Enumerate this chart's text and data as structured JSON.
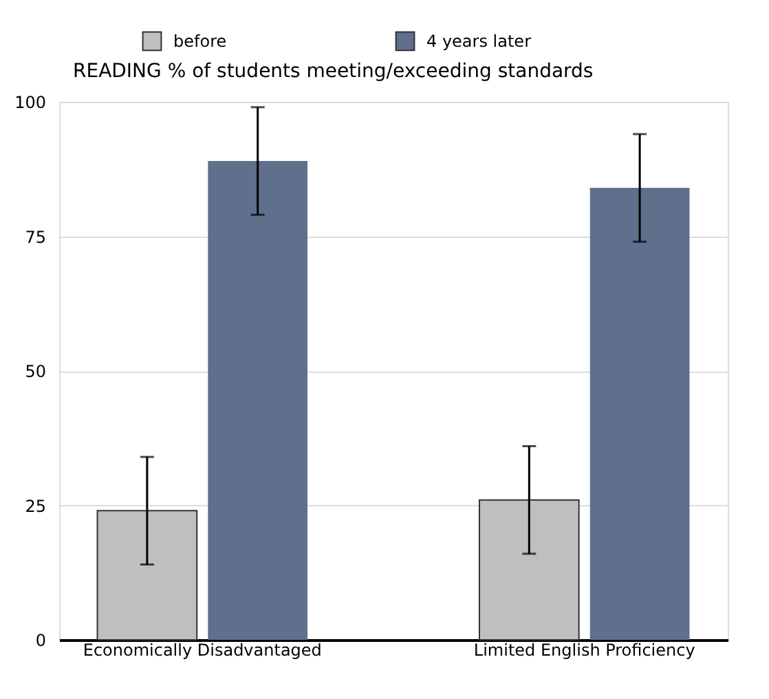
{
  "chart_data": {
    "type": "bar",
    "title": "READING  % of students meeting/exceeding standards",
    "categories": [
      "Economically Disadvantaged",
      "Limited English Proficiency"
    ],
    "series": [
      {
        "name": "before",
        "color": "#bfbfbf",
        "values": [
          24,
          26
        ],
        "errors": [
          10,
          10
        ]
      },
      {
        "name": "4 years later",
        "color": "#5f6f8c",
        "values": [
          89,
          84
        ],
        "errors": [
          10,
          10
        ]
      }
    ],
    "ylim": [
      0,
      100
    ],
    "yticks": [
      0,
      25,
      50,
      75,
      100
    ],
    "grid": "y",
    "legend": "top"
  }
}
